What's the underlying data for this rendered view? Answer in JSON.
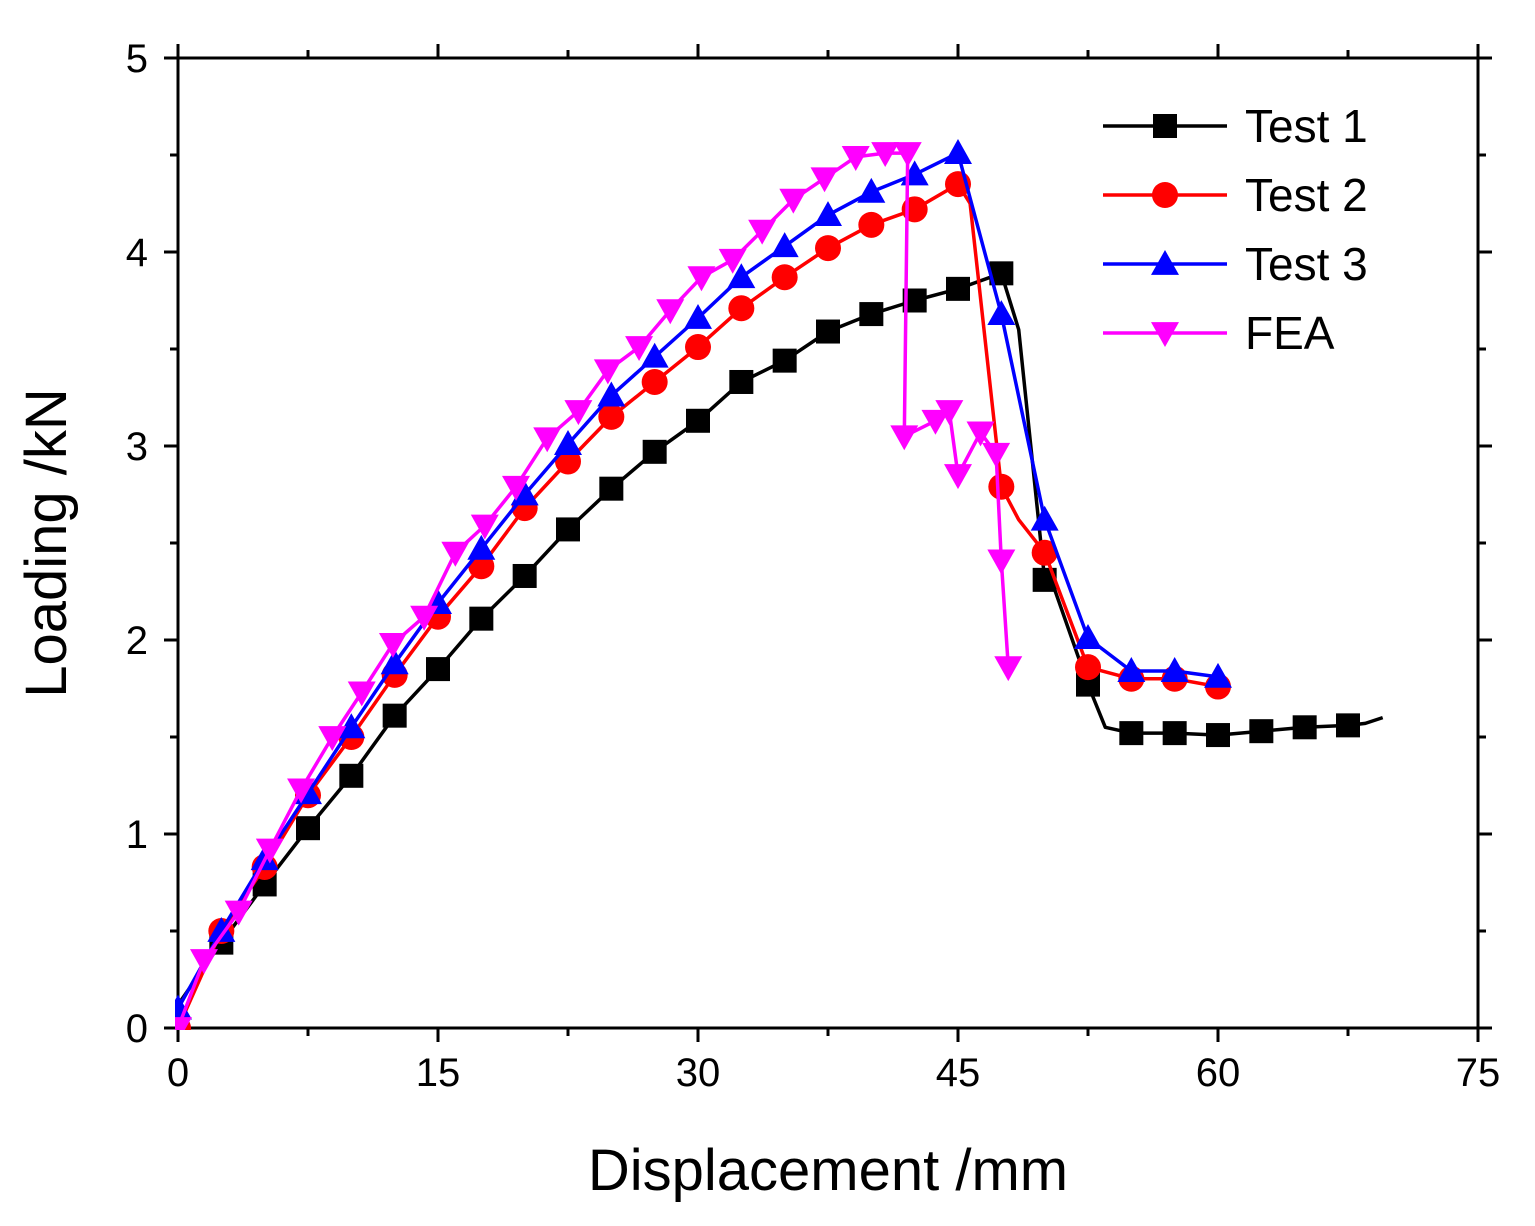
{
  "chart_data": {
    "type": "line",
    "title": "",
    "xlabel": "Displacement /mm",
    "ylabel": "Loading /kN",
    "xlim": [
      0,
      75
    ],
    "ylim": [
      0,
      5
    ],
    "x_ticks": [
      "0",
      "15",
      "30",
      "45",
      "60",
      "75"
    ],
    "y_ticks": [
      "0",
      "1",
      "2",
      "3",
      "4",
      "5"
    ],
    "grid": false,
    "legend_position": "top-right",
    "series": [
      {
        "name": "Test 1",
        "color": "#000000",
        "marker": "square",
        "line": [
          [
            0,
            0.12
          ],
          [
            2.5,
            0.44
          ],
          [
            5,
            0.74
          ],
          [
            7.5,
            1.03
          ],
          [
            10,
            1.3
          ],
          [
            12.5,
            1.61
          ],
          [
            15,
            1.85
          ],
          [
            17.5,
            2.11
          ],
          [
            20,
            2.33
          ],
          [
            22.5,
            2.57
          ],
          [
            25,
            2.78
          ],
          [
            27.5,
            2.97
          ],
          [
            30,
            3.13
          ],
          [
            32.5,
            3.33
          ],
          [
            35,
            3.44
          ],
          [
            37.5,
            3.59
          ],
          [
            40,
            3.68
          ],
          [
            42.5,
            3.75
          ],
          [
            45,
            3.81
          ],
          [
            47.5,
            3.89
          ],
          [
            48.5,
            3.6
          ],
          [
            50,
            2.31
          ],
          [
            50.5,
            2.28
          ],
          [
            52.5,
            1.77
          ],
          [
            53.5,
            1.55
          ],
          [
            55,
            1.52
          ],
          [
            57.5,
            1.52
          ],
          [
            60,
            1.51
          ],
          [
            62.5,
            1.53
          ],
          [
            65,
            1.55
          ],
          [
            67.5,
            1.56
          ],
          [
            68.5,
            1.57
          ],
          [
            69.5,
            1.6
          ]
        ],
        "markers": [
          [
            2.5,
            0.44
          ],
          [
            5,
            0.74
          ],
          [
            7.5,
            1.03
          ],
          [
            10,
            1.3
          ],
          [
            12.5,
            1.61
          ],
          [
            15,
            1.85
          ],
          [
            17.5,
            2.11
          ],
          [
            20,
            2.33
          ],
          [
            22.5,
            2.57
          ],
          [
            25,
            2.78
          ],
          [
            27.5,
            2.97
          ],
          [
            30,
            3.13
          ],
          [
            32.5,
            3.33
          ],
          [
            35,
            3.44
          ],
          [
            37.5,
            3.59
          ],
          [
            40,
            3.68
          ],
          [
            42.5,
            3.75
          ],
          [
            45,
            3.81
          ],
          [
            47.5,
            3.89
          ],
          [
            50,
            2.31
          ],
          [
            52.5,
            1.77
          ],
          [
            55,
            1.52
          ],
          [
            57.5,
            1.52
          ],
          [
            60,
            1.51
          ],
          [
            62.5,
            1.53
          ],
          [
            65,
            1.55
          ],
          [
            67.5,
            1.56
          ]
        ]
      },
      {
        "name": "Test 2",
        "color": "#ff0000",
        "marker": "circle",
        "line": [
          [
            0,
            0.0
          ],
          [
            2.5,
            0.5
          ],
          [
            5,
            0.83
          ],
          [
            7.5,
            1.2
          ],
          [
            10,
            1.5
          ],
          [
            12.5,
            1.82
          ],
          [
            15,
            2.12
          ],
          [
            17.5,
            2.38
          ],
          [
            20,
            2.68
          ],
          [
            22.5,
            2.92
          ],
          [
            25,
            3.15
          ],
          [
            27.5,
            3.33
          ],
          [
            30,
            3.51
          ],
          [
            32.5,
            3.71
          ],
          [
            35,
            3.87
          ],
          [
            37.5,
            4.02
          ],
          [
            40,
            4.14
          ],
          [
            42.5,
            4.22
          ],
          [
            45,
            4.35
          ],
          [
            45.7,
            4.25
          ],
          [
            47.5,
            2.79
          ],
          [
            48.5,
            2.62
          ],
          [
            50,
            2.45
          ],
          [
            52.5,
            1.86
          ],
          [
            55,
            1.8
          ],
          [
            57.5,
            1.8
          ],
          [
            60,
            1.76
          ]
        ],
        "markers": [
          [
            0,
            0.0
          ],
          [
            2.5,
            0.5
          ],
          [
            5,
            0.83
          ],
          [
            7.5,
            1.2
          ],
          [
            10,
            1.5
          ],
          [
            12.5,
            1.82
          ],
          [
            15,
            2.12
          ],
          [
            17.5,
            2.38
          ],
          [
            20,
            2.68
          ],
          [
            22.5,
            2.92
          ],
          [
            25,
            3.15
          ],
          [
            27.5,
            3.33
          ],
          [
            30,
            3.51
          ],
          [
            32.5,
            3.71
          ],
          [
            35,
            3.87
          ],
          [
            37.5,
            4.02
          ],
          [
            40,
            4.14
          ],
          [
            42.5,
            4.22
          ],
          [
            45,
            4.35
          ],
          [
            47.5,
            2.79
          ],
          [
            50,
            2.45
          ],
          [
            52.5,
            1.86
          ],
          [
            55,
            1.8
          ],
          [
            57.5,
            1.8
          ],
          [
            60,
            1.76
          ]
        ]
      },
      {
        "name": "Test 3",
        "color": "#0000ff",
        "marker": "triangle-up",
        "line": [
          [
            0,
            0.1
          ],
          [
            2.5,
            0.5
          ],
          [
            5,
            0.87
          ],
          [
            7.5,
            1.21
          ],
          [
            10,
            1.55
          ],
          [
            12.5,
            1.88
          ],
          [
            15,
            2.19
          ],
          [
            17.5,
            2.47
          ],
          [
            20,
            2.75
          ],
          [
            22.5,
            3.01
          ],
          [
            25,
            3.26
          ],
          [
            27.5,
            3.46
          ],
          [
            30,
            3.66
          ],
          [
            32.5,
            3.87
          ],
          [
            35,
            4.03
          ],
          [
            37.5,
            4.19
          ],
          [
            40,
            4.31
          ],
          [
            42.5,
            4.4
          ],
          [
            45,
            4.51
          ],
          [
            47.5,
            3.68
          ],
          [
            50,
            2.62
          ],
          [
            52.5,
            2.01
          ],
          [
            55,
            1.84
          ],
          [
            57.5,
            1.84
          ],
          [
            60,
            1.81
          ]
        ],
        "markers": [
          [
            0,
            0.1
          ],
          [
            2.5,
            0.5
          ],
          [
            5,
            0.87
          ],
          [
            7.5,
            1.21
          ],
          [
            10,
            1.55
          ],
          [
            12.5,
            1.88
          ],
          [
            15,
            2.19
          ],
          [
            17.5,
            2.47
          ],
          [
            20,
            2.75
          ],
          [
            22.5,
            3.01
          ],
          [
            25,
            3.26
          ],
          [
            27.5,
            3.46
          ],
          [
            30,
            3.66
          ],
          [
            32.5,
            3.87
          ],
          [
            35,
            4.03
          ],
          [
            37.5,
            4.19
          ],
          [
            40,
            4.31
          ],
          [
            42.5,
            4.4
          ],
          [
            45,
            4.51
          ],
          [
            47.5,
            3.68
          ],
          [
            50,
            2.62
          ],
          [
            52.5,
            2.01
          ],
          [
            55,
            1.84
          ],
          [
            57.5,
            1.84
          ],
          [
            60,
            1.81
          ]
        ]
      },
      {
        "name": "FEA",
        "color": "#ff00ff",
        "marker": "triangle-down",
        "line": [
          [
            0,
            0.0
          ],
          [
            1.5,
            0.35
          ],
          [
            3.5,
            0.6
          ],
          [
            5.3,
            0.92
          ],
          [
            7.1,
            1.23
          ],
          [
            8.9,
            1.5
          ],
          [
            10.6,
            1.73
          ],
          [
            12.4,
            1.98
          ],
          [
            14.2,
            2.12
          ],
          [
            16,
            2.45
          ],
          [
            17.7,
            2.59
          ],
          [
            19.5,
            2.79
          ],
          [
            21.3,
            3.04
          ],
          [
            23.1,
            3.18
          ],
          [
            24.8,
            3.39
          ],
          [
            26.6,
            3.51
          ],
          [
            28.4,
            3.7
          ],
          [
            30.2,
            3.87
          ],
          [
            32,
            3.96
          ],
          [
            33.7,
            4.11
          ],
          [
            35.5,
            4.27
          ],
          [
            37.3,
            4.38
          ],
          [
            39.1,
            4.49
          ],
          [
            40.8,
            4.51
          ],
          [
            42.1,
            4.51
          ],
          [
            41.9,
            3.05
          ],
          [
            43.7,
            3.13
          ],
          [
            44.5,
            3.18
          ],
          [
            45,
            2.85
          ],
          [
            46.3,
            3.07
          ],
          [
            47.2,
            2.96
          ],
          [
            47.5,
            2.41
          ],
          [
            47.9,
            1.86
          ]
        ],
        "markers": [
          [
            0,
            0.0
          ],
          [
            1.5,
            0.35
          ],
          [
            3.5,
            0.6
          ],
          [
            5.3,
            0.92
          ],
          [
            7.1,
            1.23
          ],
          [
            8.9,
            1.5
          ],
          [
            10.6,
            1.73
          ],
          [
            12.4,
            1.98
          ],
          [
            14.2,
            2.12
          ],
          [
            16,
            2.45
          ],
          [
            17.7,
            2.59
          ],
          [
            19.5,
            2.79
          ],
          [
            21.3,
            3.04
          ],
          [
            23.1,
            3.18
          ],
          [
            24.8,
            3.39
          ],
          [
            26.6,
            3.51
          ],
          [
            28.4,
            3.7
          ],
          [
            30.2,
            3.87
          ],
          [
            32,
            3.96
          ],
          [
            33.7,
            4.11
          ],
          [
            35.5,
            4.27
          ],
          [
            37.3,
            4.38
          ],
          [
            39.1,
            4.49
          ],
          [
            40.8,
            4.51
          ],
          [
            42.1,
            4.51
          ],
          [
            41.9,
            3.05
          ],
          [
            43.7,
            3.13
          ],
          [
            44.5,
            3.18
          ],
          [
            45,
            2.85
          ],
          [
            46.3,
            3.07
          ],
          [
            47.2,
            2.96
          ],
          [
            47.5,
            2.41
          ],
          [
            47.9,
            1.86
          ]
        ]
      }
    ]
  }
}
